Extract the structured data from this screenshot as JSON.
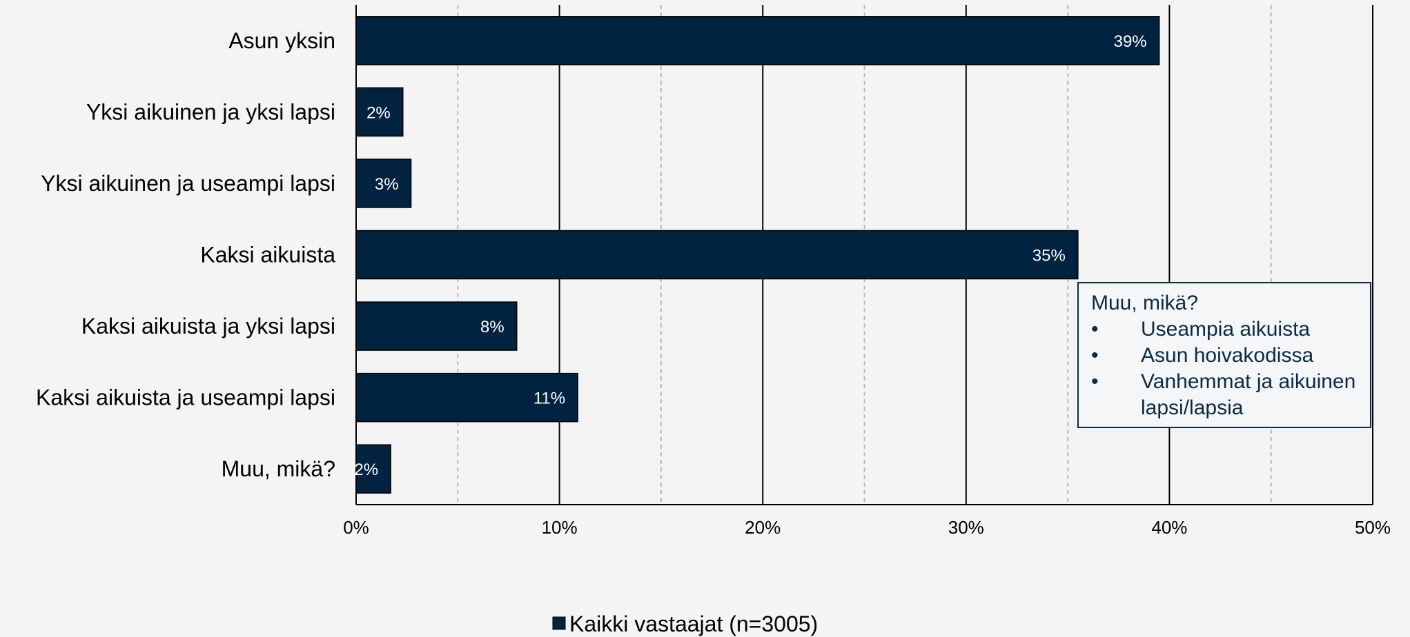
{
  "chart_data": {
    "type": "bar",
    "orientation": "horizontal",
    "categories": [
      "Asun yksin",
      "Yksi aikuinen ja yksi lapsi",
      "Yksi aikuinen ja useampi lapsi",
      "Kaksi aikuista",
      "Kaksi aikuista ja yksi lapsi",
      "Kaksi aikuista ja useampi lapsi",
      "Muu, mikä?"
    ],
    "series": [
      {
        "name": "Kaikki vastaajat (n=3005)",
        "values": [
          39.5,
          2.3,
          2.7,
          35.5,
          7.9,
          10.9,
          1.7
        ],
        "labels": [
          "39%",
          "2%",
          "3%",
          "35%",
          "8%",
          "11%",
          "2%"
        ],
        "color": "#02233f"
      }
    ],
    "xlim": [
      0,
      50
    ],
    "xticks": [
      "0%",
      "10%",
      "20%",
      "30%",
      "40%",
      "50%"
    ],
    "grid": "major solid, minor dashed",
    "legend_position": "bottom",
    "annotation": {
      "title": "Muu, mikä?",
      "items": [
        "Useampia aikuista",
        "Asun hoivakodissa",
        "Vanhemmat ja aikuinen lapsi/lapsia"
      ]
    }
  }
}
